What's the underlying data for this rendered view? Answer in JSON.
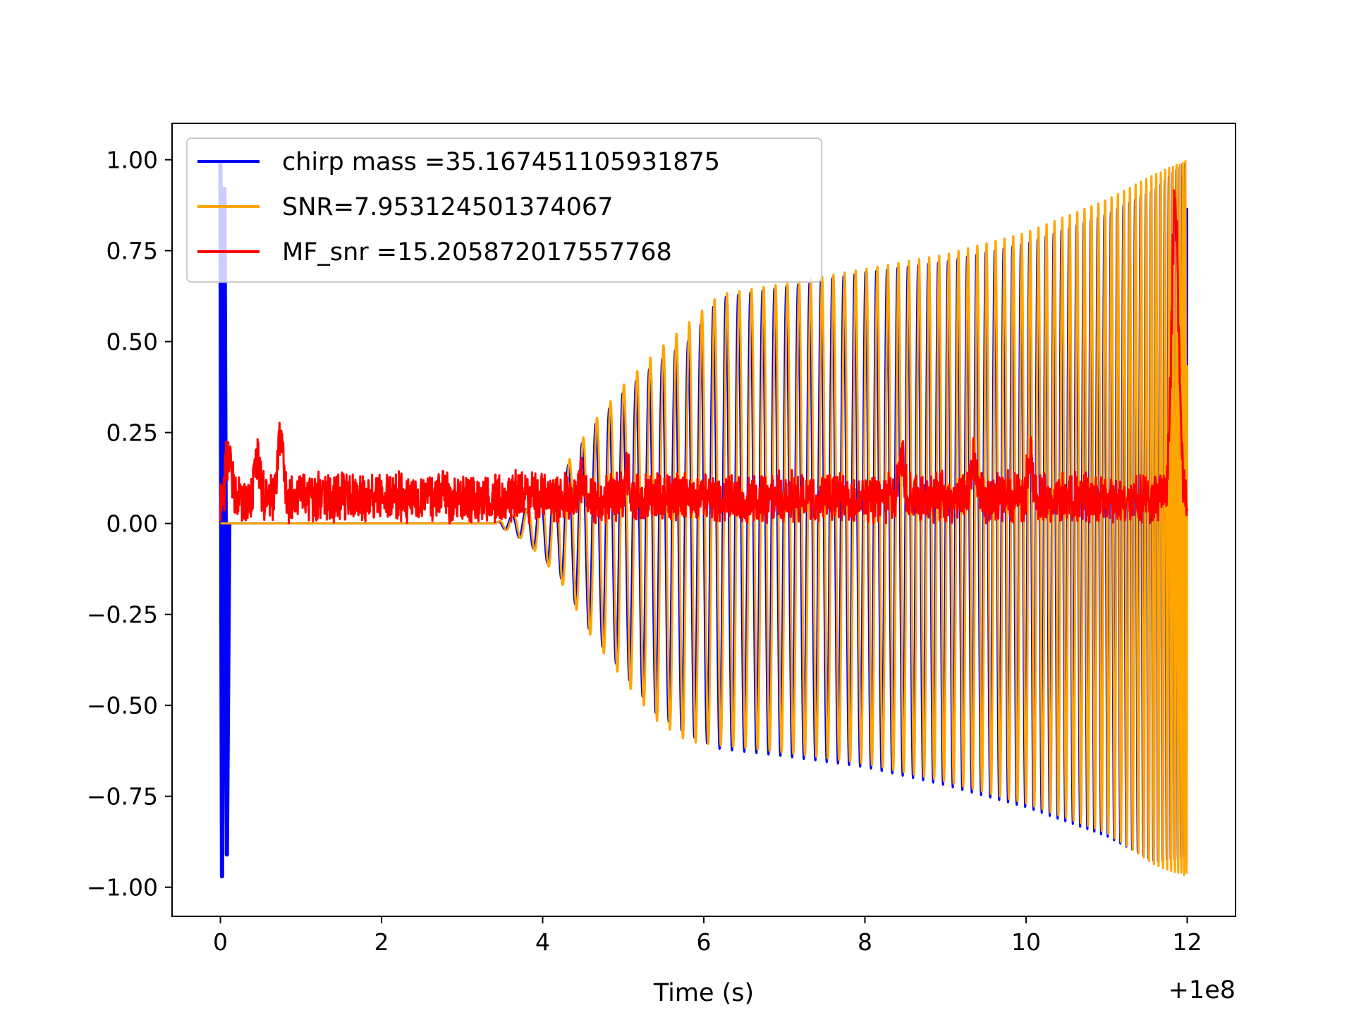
{
  "chart_data": {
    "type": "line",
    "title": "",
    "xlabel": "Time (s)",
    "ylabel": "",
    "x_offset_label": "+1e8",
    "xlim": [
      -0.6,
      12.6
    ],
    "ylim": [
      -1.08,
      1.1
    ],
    "x_ticks": [
      0,
      2,
      4,
      6,
      8,
      10,
      12
    ],
    "x_tick_labels": [
      "0",
      "2",
      "4",
      "6",
      "8",
      "10",
      "12"
    ],
    "y_ticks": [
      1.0,
      0.75,
      0.5,
      0.25,
      0.0,
      -0.25,
      -0.5,
      -0.75,
      -1.0
    ],
    "y_tick_labels": [
      "1.00",
      "0.75",
      "0.50",
      "0.25",
      "0.00",
      "−0.25",
      "−0.50",
      "−0.75",
      "−1.00"
    ],
    "grid": false,
    "legend_position": "top-left",
    "series": [
      {
        "name": "chirp mass =35.167451105931875",
        "color": "#0000ff",
        "description_points": {
          "envelope_t": [
            0.0,
            3.4,
            3.8,
            4.2,
            4.6,
            5.0,
            5.4,
            5.8,
            6.2,
            7.0,
            8.0,
            9.0,
            10.0,
            11.0,
            11.6,
            12.0
          ],
          "envelope_top": [
            0.0,
            0.0,
            0.04,
            0.12,
            0.26,
            0.36,
            0.44,
            0.5,
            0.62,
            0.65,
            0.69,
            0.72,
            0.77,
            0.85,
            0.92,
            1.0
          ],
          "envelope_bottom": [
            0.0,
            0.0,
            -0.05,
            -0.14,
            -0.3,
            -0.41,
            -0.52,
            -0.58,
            -0.62,
            -0.64,
            -0.67,
            -0.72,
            -0.78,
            -0.86,
            -0.93,
            -0.92
          ],
          "initial_spike_t": [
            0.0,
            0.02,
            0.05,
            0.08,
            0.11
          ],
          "initial_spike_v": [
            1.0,
            -0.97,
            0.92,
            -0.91,
            0.0
          ]
        }
      },
      {
        "name": "SNR=7.953124501374067",
        "color": "#ffa500",
        "description_points": {
          "envelope_t": [
            0.0,
            3.4,
            3.8,
            4.2,
            4.6,
            5.0,
            5.4,
            5.8,
            6.2,
            7.0,
            8.0,
            9.0,
            10.0,
            11.0,
            11.6,
            12.0
          ],
          "envelope_top": [
            0.0,
            0.0,
            0.04,
            0.13,
            0.27,
            0.38,
            0.47,
            0.55,
            0.63,
            0.66,
            0.7,
            0.74,
            0.8,
            0.89,
            0.96,
            1.0
          ],
          "envelope_bottom": [
            0.0,
            0.0,
            -0.05,
            -0.15,
            -0.31,
            -0.43,
            -0.54,
            -0.6,
            -0.61,
            -0.63,
            -0.66,
            -0.71,
            -0.77,
            -0.85,
            -0.94,
            -0.97
          ]
        }
      },
      {
        "name": "MF_snr =15.205872017557768",
        "color": "#ff0000",
        "description_points": {
          "baseline": 0.07,
          "spread": 0.08,
          "peak_t": [
            0.1,
            0.45,
            0.75,
            4.5,
            5.05,
            8.45,
            9.35,
            10.05,
            11.85
          ],
          "peak_v": [
            0.24,
            0.23,
            0.3,
            0.19,
            0.2,
            0.25,
            0.24,
            0.23,
            1.0
          ]
        }
      }
    ]
  }
}
